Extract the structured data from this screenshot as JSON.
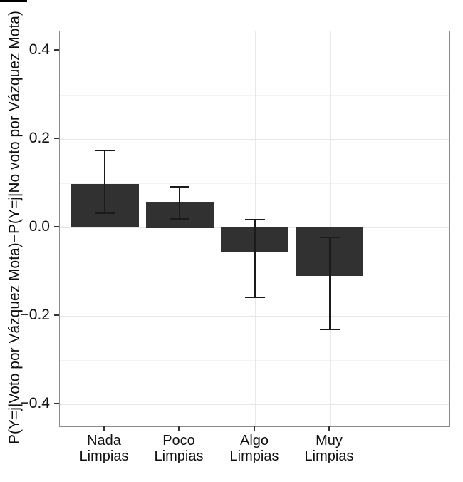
{
  "chart_data": {
    "type": "bar",
    "title": "",
    "xlabel": "",
    "ylabel": "P(Y=j|Voto por Vázquez Mota)−P(Y=j|No voto por Vázquez Mota)",
    "categories": [
      "Nada Limpias",
      "Poco Limpias",
      "Algo Limpias",
      "Muy Limpias"
    ],
    "category_label_lines": [
      [
        "Nada",
        "Limpias"
      ],
      [
        "Poco",
        "Limpias"
      ],
      [
        "Algo",
        "Limpias"
      ],
      [
        "Muy",
        "Limpias"
      ]
    ],
    "values": [
      0.098,
      0.059,
      -0.056,
      -0.11
    ],
    "error_low": [
      0.033,
      0.02,
      -0.158,
      -0.23
    ],
    "error_high": [
      0.175,
      0.093,
      0.018,
      -0.023
    ],
    "ylim": [
      -0.45,
      0.444
    ],
    "yticks_major": [
      0.4,
      0.2,
      0.0,
      -0.2,
      -0.4
    ],
    "ytick_labels": [
      "0.4",
      "0.2",
      "0.0",
      "−0.2",
      "−0.4"
    ],
    "yticks_minor": [
      0.3,
      0.1,
      -0.1,
      -0.3
    ],
    "grid": "on",
    "legend": "none",
    "colors": {
      "bar_fill": "#313131",
      "error_bar": "#1b1b1b",
      "panel_border": "#8a8a8a",
      "grid_major": "#e6e6e6",
      "grid_minor": "#f3f3f3",
      "axis_tick": "#333333",
      "text": "#111111",
      "background": "#ffffff"
    }
  }
}
